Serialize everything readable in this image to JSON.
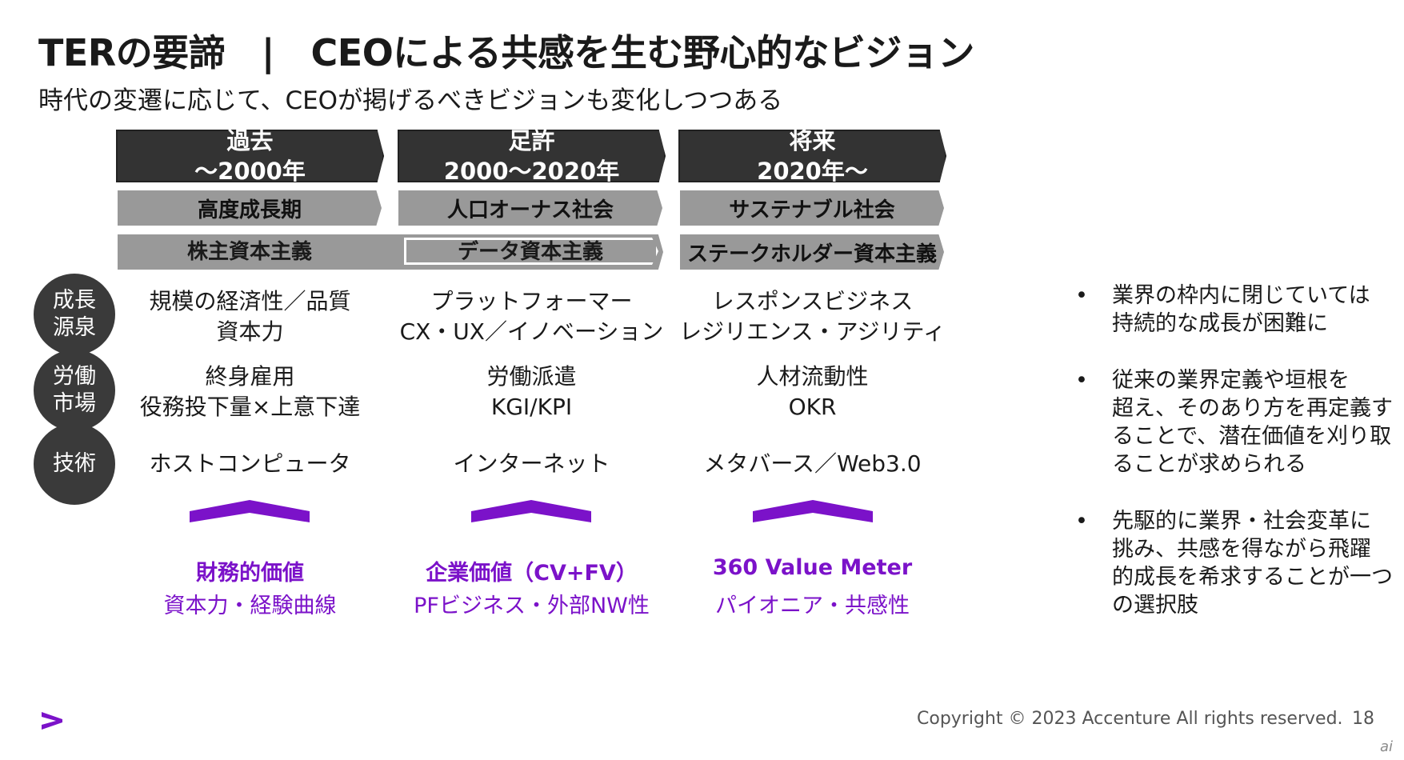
{
  "header": {
    "title": "TERの要諦　|　CEOによる共感を生む野心的なビジョン",
    "subtitle": "時代の変遷に応じて、CEOが掲げるべきビジョンも変化しつつある"
  },
  "eras": [
    {
      "name": "過去",
      "period": "～2000年",
      "society": "高度成長期"
    },
    {
      "name": "足許",
      "period": "2000～2020年",
      "society": "人口オーナス社会"
    },
    {
      "name": "将来",
      "period": "2020年～",
      "society": "サステナブル社会"
    }
  ],
  "capitalism": {
    "shareholder": "株主資本主義",
    "data": "データ資本主義",
    "stakeholder": "ステークホルダー資本主義"
  },
  "categories": {
    "growth": "成長\n源泉",
    "labor": "労働\n市場",
    "tech": "技術"
  },
  "rows": {
    "growth": [
      "規模の経済性／品質\n資本力",
      "プラットフォーマー\nCX・UX／イノベーション",
      "レスポンスビジネス\nレジリエンス・アジリティ"
    ],
    "labor": [
      "終身雇用\n役務投下量×上意下達",
      "労働派遣\nKGI/KPI",
      "人材流動性\nOKR"
    ],
    "tech": [
      "ホストコンピュータ",
      "インターネット",
      "メタバース／Web3.0"
    ]
  },
  "values": [
    {
      "title": "財務的価値",
      "sub": "資本力・経験曲線"
    },
    {
      "title": "企業価値（CV+FV）",
      "sub": "PFビジネス・外部NW性"
    },
    {
      "title": "360 Value Meter",
      "sub": "パイオニア・共感性"
    }
  ],
  "bullets": [
    "業界の枠内に閉じていては\n持続的な成長が困難に",
    "従来の業界定義や垣根を\n超え、そのあり方を再定義す\nることで、潜在価値を刈り取\nることが求められる",
    "先駆的に業界・社会変革に\n挑み、共感を得ながら飛躍\n的成長を希求することが一つ\nの選択肢"
  ],
  "bullet_mark": "•",
  "footer": {
    "copyright": "Copyright © 2023 Accenture  All rights reserved.",
    "page": "18"
  },
  "watermark": "ai",
  "colors": {
    "accent": "#7b12c9",
    "dark": "#333333",
    "gray": "#999999"
  },
  "icons": {
    "logo": "accenture-greater-than-icon"
  }
}
